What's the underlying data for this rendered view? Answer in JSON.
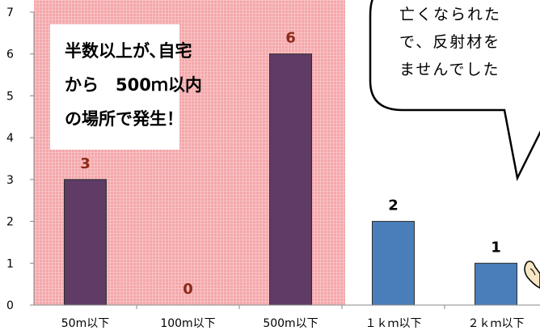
{
  "chart_data": {
    "type": "bar",
    "categories": [
      "50m以下",
      "100m以下",
      "500m以下",
      "１ｋｍ以下",
      "２ｋｍ以下"
    ],
    "values": [
      3,
      0,
      6,
      2,
      1
    ],
    "data_labels": [
      "3",
      "0",
      "6",
      "2",
      "1"
    ],
    "ylim": [
      0,
      7
    ],
    "yticks": [
      "0",
      "1",
      "2",
      "3",
      "4",
      "5",
      "6",
      "7"
    ],
    "grid": false,
    "highlight_region": {
      "categories": [
        "50m以下",
        "100m以下",
        "500m以下"
      ],
      "color": "#f4a7aa"
    },
    "colors": {
      "highlighted_bar": "#5f3b66",
      "normal_bar": "#4a7ebb",
      "bar_outline": "#2c2c2c",
      "data_label_highlighted": "#8b2a18",
      "data_label_normal": "#000000"
    }
  },
  "annotation_box": {
    "lines": [
      "半数以上が､自宅",
      "から　500ｍ以内",
      "の場所で発生！"
    ]
  },
  "speech_bubble": {
    "lines": [
      "亡くなられた",
      "で、反射材を",
      "ませんでした"
    ]
  }
}
